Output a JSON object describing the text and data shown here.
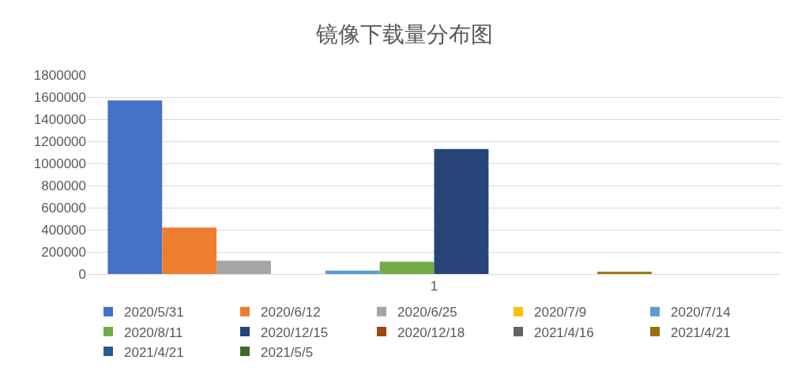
{
  "chart_data": {
    "type": "bar",
    "title": "镜像下载量分布图",
    "categories": [
      "1"
    ],
    "series": [
      {
        "name": "2020/5/31",
        "color": "#4472c4",
        "values": [
          1570000
        ]
      },
      {
        "name": "2020/6/12",
        "color": "#ed7d31",
        "values": [
          420000
        ]
      },
      {
        "name": "2020/6/25",
        "color": "#a5a5a5",
        "values": [
          120000
        ]
      },
      {
        "name": "2020/7/9",
        "color": "#ffc000",
        "values": [
          0
        ]
      },
      {
        "name": "2020/7/14",
        "color": "#5b9bd5",
        "values": [
          30000
        ]
      },
      {
        "name": "2020/8/11",
        "color": "#70ad47",
        "values": [
          110000
        ]
      },
      {
        "name": "2020/12/15",
        "color": "#264478",
        "values": [
          1130000
        ]
      },
      {
        "name": "2020/12/18",
        "color": "#9e480e",
        "values": [
          0
        ]
      },
      {
        "name": "2021/4/16",
        "color": "#636363",
        "values": [
          0
        ]
      },
      {
        "name": "2021/4/21",
        "color": "#997300",
        "values": [
          20000
        ]
      },
      {
        "name": "2021/4/21",
        "color": "#255e91",
        "values": [
          0
        ]
      },
      {
        "name": "2021/5/5",
        "color": "#43682b",
        "values": [
          0
        ]
      }
    ],
    "ylim": [
      0,
      1800000
    ],
    "yticks": [
      0,
      200000,
      400000,
      600000,
      800000,
      1000000,
      1200000,
      1400000,
      1600000,
      1800000
    ],
    "grid": "y",
    "legend": "bottom"
  }
}
